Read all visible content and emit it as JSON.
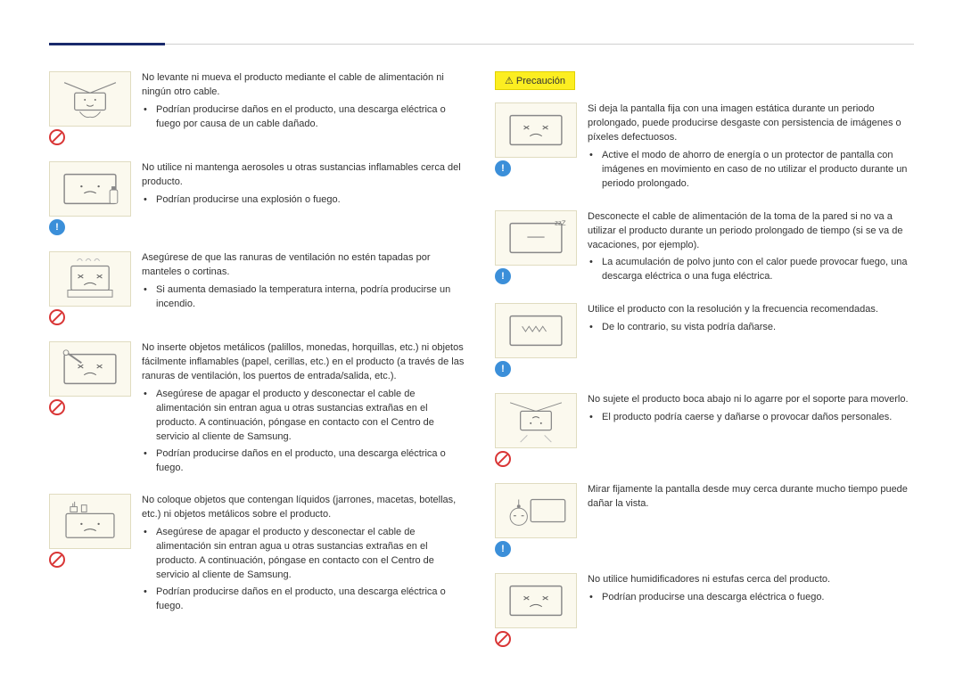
{
  "colors": {
    "accent": "#1a2a6c",
    "icon_bg": "#fbf9ee",
    "precaution_bg": "#fcee21",
    "prohibit": "#d93636",
    "info": "#3b8fd9"
  },
  "precaution_label": "Precaución",
  "left": [
    {
      "badge": "prohibit",
      "illustration": "lift-by-cable",
      "intro": "No levante ni mueva el producto mediante el cable de alimentación ni ningún otro cable.",
      "bullets": [
        "Podrían producirse daños en el producto, una descarga eléctrica o fuego por causa de un cable dañado."
      ]
    },
    {
      "badge": "info",
      "illustration": "aerosol",
      "intro": "No utilice ni mantenga aerosoles u otras sustancias inflamables cerca del producto.",
      "bullets": [
        "Podrían producirse una explosión o fuego."
      ]
    },
    {
      "badge": "prohibit",
      "illustration": "vents-covered",
      "intro": "Asegúrese de que las ranuras de ventilación no estén tapadas por manteles o cortinas.",
      "bullets": [
        "Si aumenta demasiado la temperatura interna, podría producirse un incendio."
      ]
    },
    {
      "badge": "prohibit",
      "illustration": "insert-objects",
      "intro": "No inserte objetos metálicos (palillos, monedas, horquillas, etc.) ni objetos fácilmente inflamables (papel, cerillas, etc.) en el producto (a través de las ranuras de ventilación, los puertos de entrada/salida, etc.).",
      "bullets": [
        "Asegúrese de apagar el producto y desconectar el cable de alimentación sin entran agua u otras sustancias extrañas en el producto. A continuación, póngase en contacto con el Centro de servicio al cliente de Samsung.",
        "Podrían producirse daños en el producto, una descarga eléctrica o fuego."
      ]
    },
    {
      "badge": "prohibit",
      "illustration": "vase-on-top",
      "intro": "No coloque objetos que contengan líquidos (jarrones, macetas, botellas, etc.) ni objetos metálicos sobre el producto.",
      "bullets": [
        "Asegúrese de apagar el producto y desconectar el cable de alimentación sin entran agua u otras sustancias extrañas en el producto. A continuación, póngase en contacto con el Centro de servicio al cliente de Samsung.",
        "Podrían producirse daños en el producto, una descarga eléctrica o fuego."
      ]
    }
  ],
  "right": [
    {
      "badge": "info",
      "illustration": "static-image",
      "intro": "Si deja la pantalla fija con una imagen estática durante un periodo prolongado, puede producirse desgaste con persistencia de imágenes o píxeles defectuosos.",
      "bullets": [
        "Active el modo de ahorro de energía o un protector de pantalla con imágenes en movimiento en caso de no utilizar el producto durante un periodo prolongado."
      ]
    },
    {
      "badge": "info",
      "illustration": "sleep-unplug",
      "intro": "Desconecte el cable de alimentación de la toma de la pared si no va a utilizar el producto durante un periodo prolongado de tiempo (si se va de vacaciones, por ejemplo).",
      "bullets": [
        "La acumulación de polvo junto con el calor puede provocar fuego, una descarga eléctrica o una fuga eléctrica."
      ]
    },
    {
      "badge": "info",
      "illustration": "wavy-screen",
      "intro": "Utilice el producto con la resolución y la frecuencia recomendadas.",
      "bullets": [
        "De lo contrario, su vista podría dañarse."
      ]
    },
    {
      "badge": "prohibit",
      "illustration": "upside-down",
      "intro": "No sujete el producto boca abajo ni lo agarre por el soporte para moverlo.",
      "bullets": [
        "El producto podría caerse y dañarse o provocar daños personales."
      ]
    },
    {
      "badge": "info",
      "illustration": "close-stare",
      "intro": "Mirar fijamente la pantalla desde muy cerca durante mucho tiempo puede dañar la vista.",
      "bullets": []
    },
    {
      "badge": "prohibit",
      "illustration": "humidifier",
      "intro": "No utilice humidificadores ni estufas cerca del producto.",
      "bullets": [
        "Podrían producirse una descarga eléctrica o fuego."
      ]
    }
  ]
}
